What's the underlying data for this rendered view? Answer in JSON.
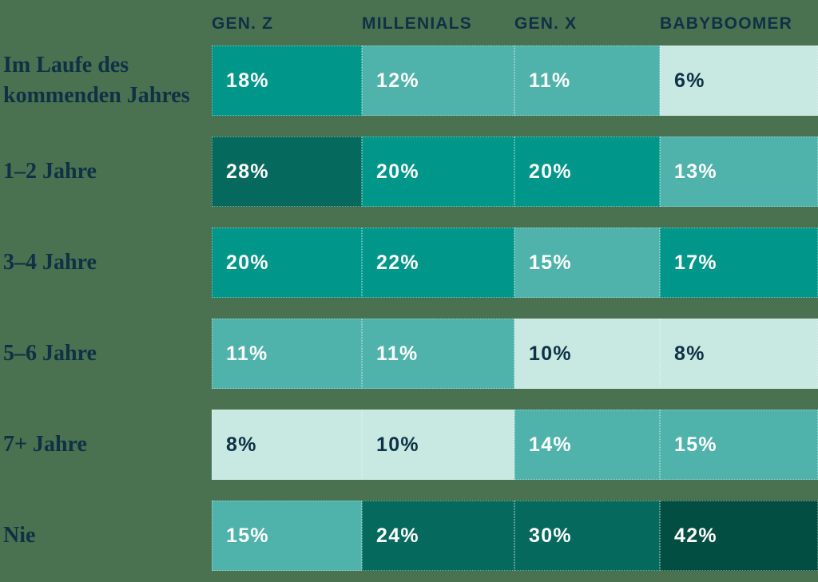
{
  "colors": {
    "background": "#4A7150",
    "text_dark": "#0E3145",
    "text_light": "#FFFFFF",
    "scale": {
      "lightest": "#C7E9E2",
      "light": "#4FB3AB",
      "medium": "#00968A",
      "dark": "#06695D",
      "darkest": "#034E42"
    }
  },
  "chart_data": {
    "type": "heatmap",
    "unit": "%",
    "legend_position": "none",
    "grid": false,
    "columns": [
      "GEN. Z",
      "MILLENIALS",
      "GEN. X",
      "BABYBOOMER"
    ],
    "rows": [
      "Im Laufe des kommenden Jahres",
      "1–2 Jahre",
      "3–4 Jahre",
      "5–6 Jahre",
      "7+ Jahre",
      "Nie"
    ],
    "values": [
      [
        18,
        12,
        11,
        6
      ],
      [
        28,
        20,
        20,
        13
      ],
      [
        20,
        22,
        15,
        17
      ],
      [
        11,
        11,
        10,
        8
      ],
      [
        8,
        10,
        14,
        15
      ],
      [
        15,
        24,
        30,
        42
      ]
    ],
    "cell_labels": [
      [
        "18%",
        "12%",
        "11%",
        "6%"
      ],
      [
        "28%",
        "20%",
        "20%",
        "13%"
      ],
      [
        "20%",
        "22%",
        "15%",
        "17%"
      ],
      [
        "11%",
        "11%",
        "10%",
        "8%"
      ],
      [
        "8%",
        "10%",
        "14%",
        "15%"
      ],
      [
        "15%",
        "24%",
        "30%",
        "42%"
      ]
    ],
    "cell_color_levels": [
      [
        "medium",
        "light",
        "light",
        "lightest"
      ],
      [
        "dark",
        "medium",
        "medium",
        "light"
      ],
      [
        "medium",
        "medium",
        "light",
        "medium"
      ],
      [
        "light",
        "light",
        "lightest",
        "lightest"
      ],
      [
        "lightest",
        "lightest",
        "light",
        "light"
      ],
      [
        "light",
        "dark",
        "dark",
        "darkest"
      ]
    ]
  }
}
